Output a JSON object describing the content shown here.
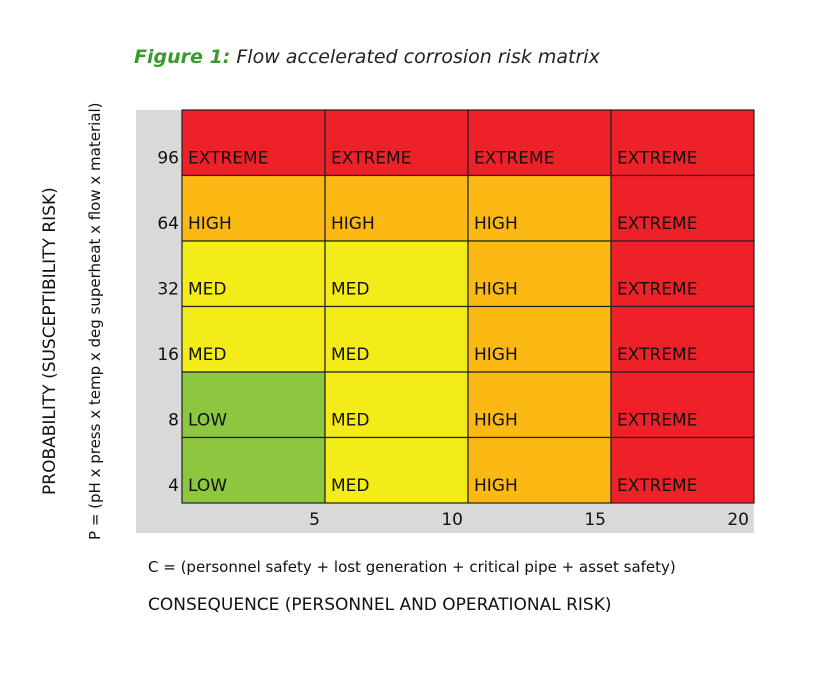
{
  "figure": {
    "label": "Figure 1:",
    "title": "Flow accelerated corrosion risk matrix"
  },
  "axis": {
    "y_outer": "PROBABILITY (SUSCEPTIBILITY RISK)",
    "y_inner": "P = (pH x press x temp x deg superheat x flow x material)",
    "x_inner": "C = (personnel safety + lost generation + critical pipe + asset safety)",
    "x_outer": "CONSEQUENCE (PERSONNEL AND OPERATIONAL RISK)"
  },
  "colors": {
    "EXTREME": "#ee2128",
    "HIGH": "#fdb913",
    "MED": "#f3ec19",
    "LOW": "#8dc63f",
    "axis_bg": "#d9d9d9"
  },
  "chart_data": {
    "type": "heatmap",
    "x_ticks": [
      "5",
      "10",
      "15",
      "20"
    ],
    "y_ticks": [
      "96",
      "64",
      "32",
      "16",
      "8",
      "4"
    ],
    "matrix": [
      [
        "EXTREME",
        "EXTREME",
        "EXTREME",
        "EXTREME"
      ],
      [
        "HIGH",
        "HIGH",
        "HIGH",
        "EXTREME"
      ],
      [
        "MED",
        "MED",
        "HIGH",
        "EXTREME"
      ],
      [
        "MED",
        "MED",
        "HIGH",
        "EXTREME"
      ],
      [
        "LOW",
        "MED",
        "HIGH",
        "EXTREME"
      ],
      [
        "LOW",
        "MED",
        "HIGH",
        "EXTREME"
      ]
    ]
  }
}
